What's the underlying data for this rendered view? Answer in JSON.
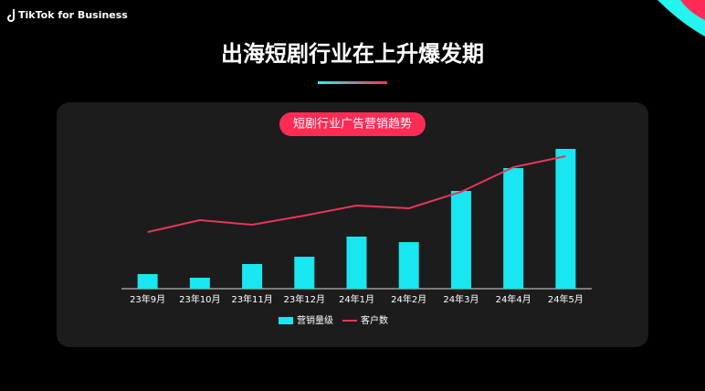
{
  "brand": "TikTok for Business",
  "chart_data": {
    "type": "bar_line",
    "title": "出海短剧行业在上升爆发期",
    "subtitle": "短剧行业广告营销趋势",
    "categories": [
      "23年9月",
      "23年10月",
      "23年11月",
      "23年12月",
      "24年1月",
      "24年2月",
      "24年3月",
      "24年4月",
      "24年5月"
    ],
    "series": [
      {
        "name": "营销量级",
        "color": "#19e6f0",
        "kind": "bar",
        "values": [
          16,
          12,
          27,
          35,
          57,
          51,
          107,
          132,
          153
        ]
      },
      {
        "name": "客户数",
        "color": "#e8355a",
        "kind": "line",
        "values": [
          62,
          75,
          70,
          80,
          91,
          88,
          106,
          133,
          145
        ]
      }
    ],
    "ylim": [
      0,
      160
    ],
    "grid": false,
    "legend": "bottom"
  }
}
